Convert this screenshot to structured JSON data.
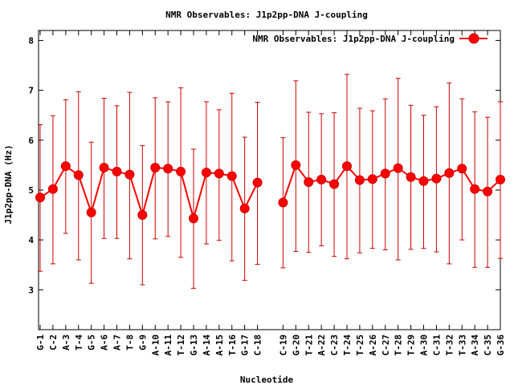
{
  "chart_data": {
    "type": "line",
    "title": "NMR Observables: J1p2pp-DNA J-coupling",
    "xlabel": "Nucleotide",
    "ylabel": "J1p2pp-DNA (Hz)",
    "ylim": [
      2.2,
      8.2
    ],
    "yticks": [
      3,
      4,
      5,
      6,
      7,
      8
    ],
    "grid": false,
    "legend_position": "top-right",
    "legend_label": "NMR Observables: J1p2pp-DNA J-coupling",
    "series_color": "#ff0000",
    "errorbar_color": "#cc0000",
    "categories": [
      "G-1",
      "C-2",
      "A-3",
      "T-4",
      "G-5",
      "A-6",
      "A-7",
      "T-8",
      "G-9",
      "A-10",
      "A-11",
      "T-12",
      "G-13",
      "A-14",
      "A-15",
      "T-16",
      "G-17",
      "C-18",
      "C-19",
      "G-20",
      "T-21",
      "A-22",
      "C-23",
      "T-24",
      "T-25",
      "A-26",
      "C-27",
      "T-28",
      "T-29",
      "A-30",
      "C-31",
      "T-32",
      "T-33",
      "A-34",
      "C-35",
      "G-36"
    ],
    "x": [
      1,
      2,
      3,
      4,
      5,
      6,
      7,
      8,
      9,
      10,
      11,
      12,
      13,
      14,
      15,
      16,
      17,
      18,
      20,
      21,
      22,
      23,
      24,
      25,
      26,
      27,
      28,
      29,
      30,
      31,
      32,
      33,
      34,
      35,
      36,
      37
    ],
    "values": [
      4.85,
      5.02,
      5.48,
      5.3,
      4.55,
      5.45,
      5.37,
      5.31,
      4.5,
      5.45,
      5.43,
      5.37,
      4.43,
      5.35,
      5.33,
      5.28,
      4.63,
      5.15,
      4.75,
      5.5,
      5.16,
      5.21,
      5.12,
      5.48,
      5.2,
      5.22,
      5.33,
      5.44,
      5.26,
      5.18,
      5.23,
      5.34,
      5.43,
      5.02,
      4.97,
      5.21
    ],
    "error_low": [
      3.37,
      3.52,
      4.13,
      3.6,
      3.13,
      4.03,
      4.03,
      3.62,
      3.1,
      4.02,
      4.07,
      3.65,
      3.03,
      3.92,
      3.99,
      3.58,
      3.19,
      3.51,
      3.44,
      3.77,
      3.75,
      3.88,
      3.67,
      3.62,
      3.74,
      3.83,
      3.8,
      3.6,
      3.81,
      3.83,
      3.76,
      3.52,
      4.0,
      3.45,
      3.45,
      3.63
    ],
    "error_high": [
      6.31,
      6.49,
      6.81,
      6.97,
      5.96,
      6.84,
      6.69,
      6.96,
      5.89,
      6.85,
      6.77,
      7.05,
      5.82,
      6.77,
      6.61,
      6.94,
      6.06,
      6.76,
      6.05,
      7.19,
      6.56,
      6.53,
      6.55,
      7.32,
      6.64,
      6.59,
      6.83,
      7.24,
      6.7,
      6.5,
      6.67,
      7.15,
      6.83,
      6.57,
      6.46,
      6.77
    ],
    "segments": [
      [
        1,
        18
      ],
      [
        20,
        37
      ]
    ],
    "xlim": [
      1,
      37
    ]
  }
}
